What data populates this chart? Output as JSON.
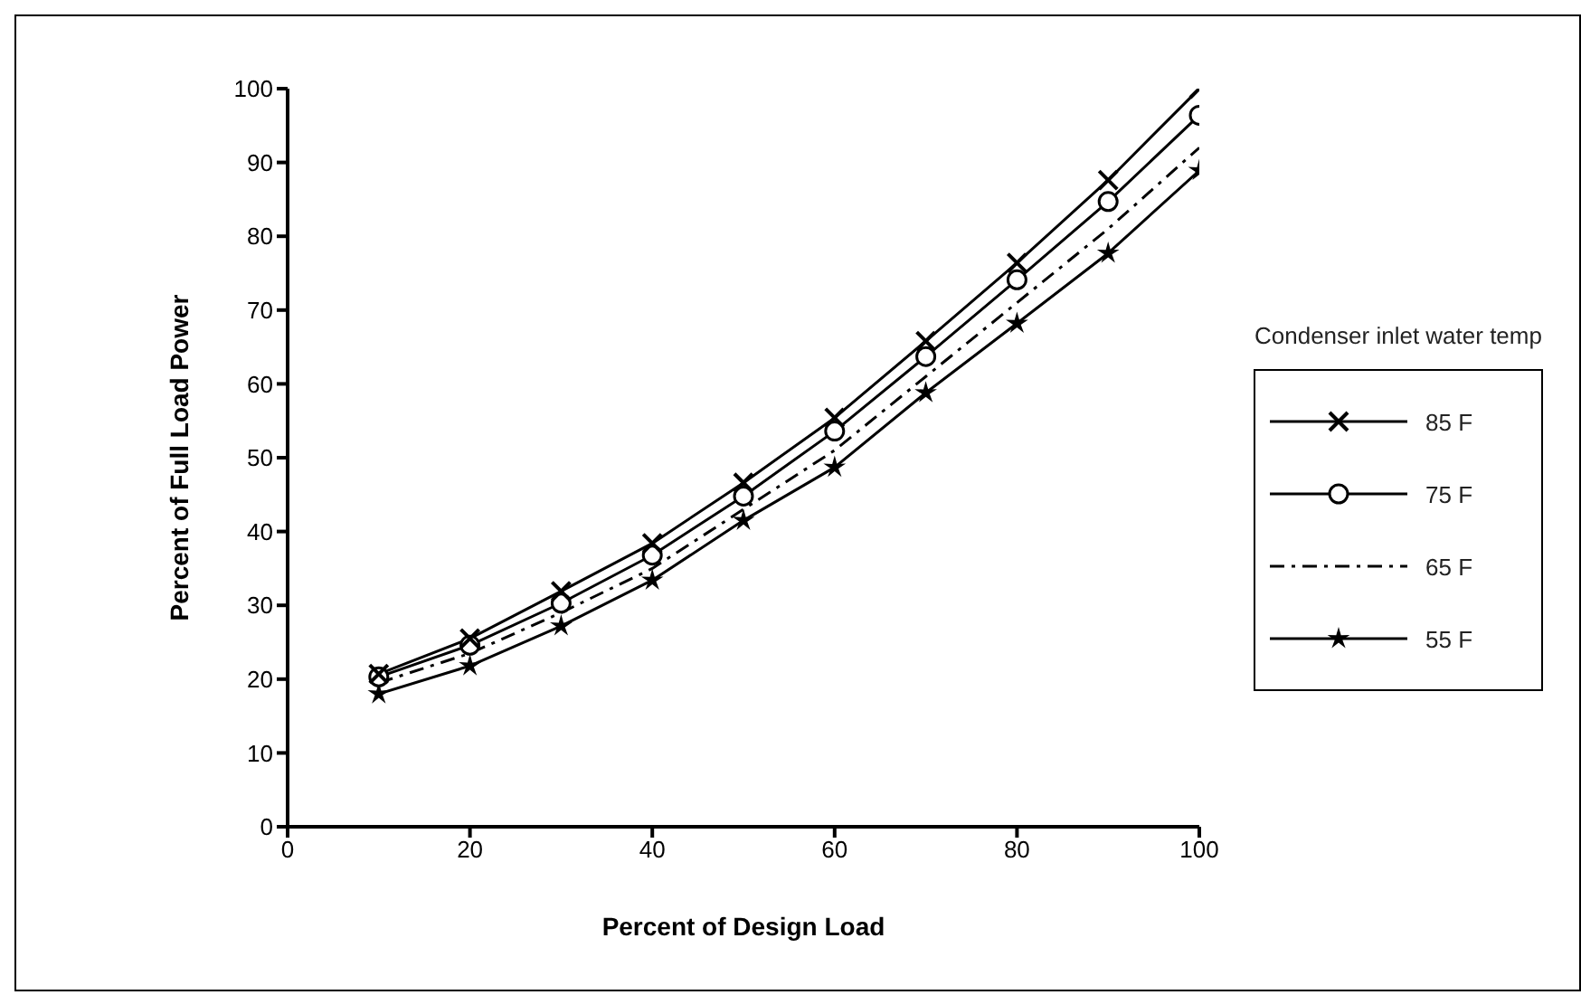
{
  "chart_data": {
    "type": "line",
    "xlabel": "Percent of Design Load",
    "ylabel": "Percent of Full Load Power",
    "legend_title": "Condenser inlet water temp",
    "x": [
      10,
      20,
      30,
      40,
      50,
      60,
      70,
      80,
      90,
      100
    ],
    "series": [
      {
        "name": "85 F",
        "color": "#000000",
        "marker": "cross",
        "line_style": "solid",
        "values": [
          20.7,
          25.5,
          31.9,
          38.4,
          46.6,
          55.4,
          65.8,
          76.4,
          87.6,
          100
        ]
      },
      {
        "name": "75 F",
        "color": "#000000",
        "marker": "circle",
        "line_style": "solid",
        "values": [
          20.3,
          24.6,
          30.3,
          36.8,
          44.8,
          53.6,
          63.7,
          74.1,
          84.7,
          96.4
        ]
      },
      {
        "name": "65 F",
        "color": "#000000",
        "marker": "none",
        "line_style": "dashed",
        "values": [
          19.5,
          23.5,
          29,
          35,
          43,
          51,
          61,
          71,
          81,
          92
        ]
      },
      {
        "name": "55 F",
        "color": "#000000",
        "marker": "star",
        "line_style": "solid",
        "values": [
          18,
          21.8,
          27.2,
          33.4,
          41.5,
          48.7,
          58.8,
          68.2,
          77.7,
          88.9
        ]
      }
    ],
    "xlim": [
      0,
      100
    ],
    "xticks": [
      0,
      20,
      40,
      60,
      80,
      100
    ],
    "ylim": [
      0,
      100
    ],
    "yticks": [
      0,
      10,
      20,
      30,
      40,
      50,
      60,
      70,
      80,
      90,
      100
    ],
    "grid": false,
    "legend": "right"
  }
}
